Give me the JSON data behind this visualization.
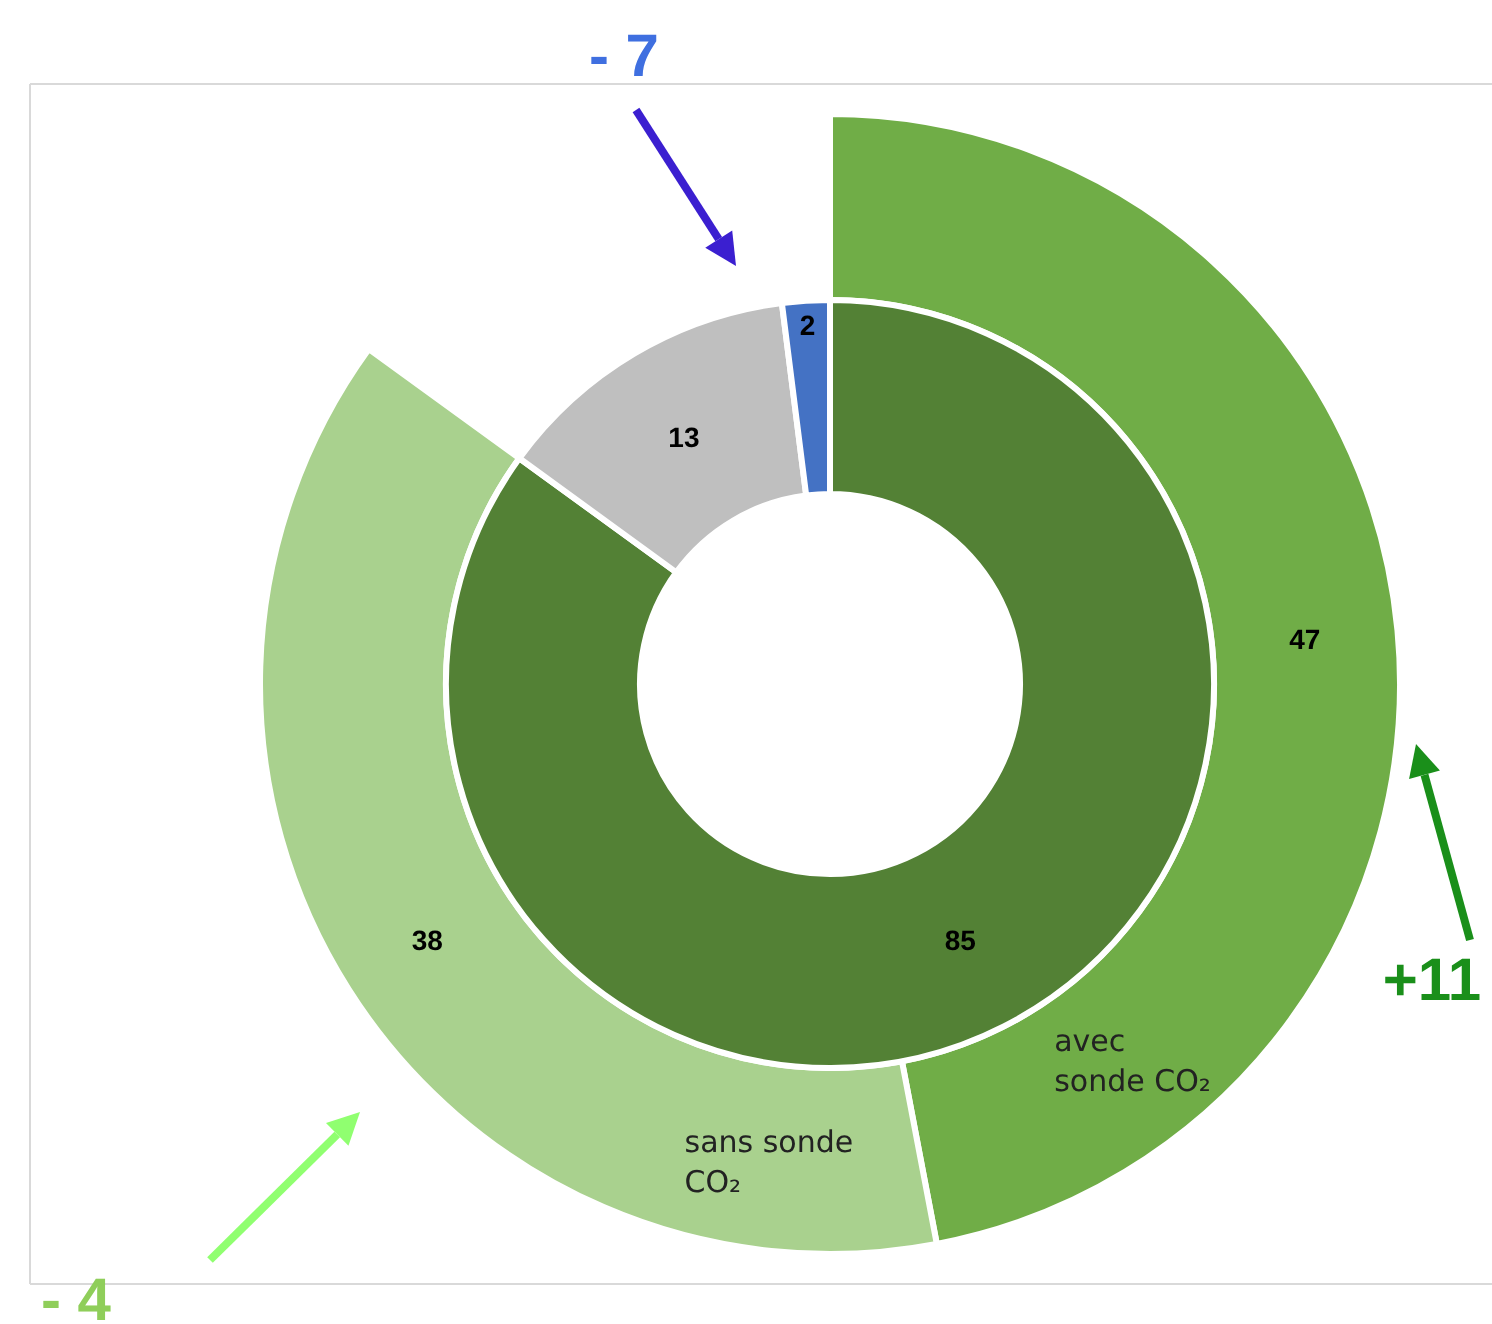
{
  "chart_data": [
    {
      "type": "donut",
      "categories": [
        null,
        null,
        null
      ],
      "values": [
        85,
        13,
        2
      ],
      "colors": [
        "#538135",
        "#bfbfbf",
        "#4472c4"
      ],
      "data_labels": true,
      "annotations": [
        "- 7"
      ]
    },
    {
      "type": "donut",
      "categories": [
        "avec sonde CO₂",
        "sans sonde CO₂"
      ],
      "values": [
        47,
        38
      ],
      "colors": [
        "#70ad47",
        "#a9d18e"
      ],
      "data_labels": true,
      "annotations": [
        "+11",
        "- 4"
      ]
    }
  ]
}
